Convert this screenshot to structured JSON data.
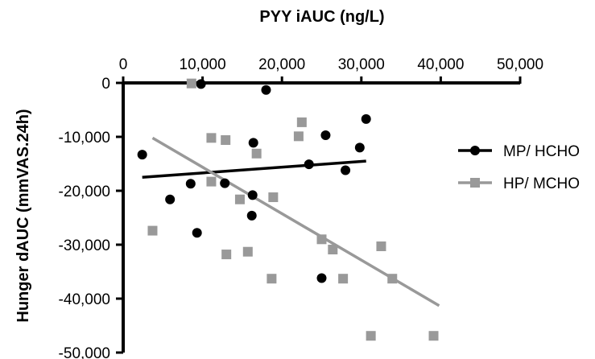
{
  "chart_data": {
    "type": "scatter",
    "xlabel": "PYY iAUC (ng/L)",
    "ylabel": "Hunger dAUC (mmVAS.24h)",
    "xlim": [
      0,
      50000
    ],
    "ylim": [
      -50000,
      0
    ],
    "x_ticks": [
      "0",
      "10,000",
      "20,000",
      "30,000",
      "40,000",
      "50,000"
    ],
    "y_ticks": [
      "0",
      "-10,000",
      "-20,000",
      "-30,000",
      "-40,000",
      "-50,000"
    ],
    "x_tick_values": [
      0,
      10000,
      20000,
      30000,
      40000,
      50000
    ],
    "y_tick_values": [
      0,
      -10000,
      -20000,
      -30000,
      -40000,
      -50000
    ],
    "x_axis_position": "top",
    "legend_position": "right",
    "grid": false,
    "series": [
      {
        "name": "MP/ HCHO",
        "color": "#000000",
        "marker": "circle",
        "points": [
          [
            2400,
            -13300
          ],
          [
            5900,
            -21600
          ],
          [
            8500,
            -18700
          ],
          [
            9300,
            -27800
          ],
          [
            9800,
            -200
          ],
          [
            12800,
            -18600
          ],
          [
            16200,
            -24600
          ],
          [
            16300,
            -20800
          ],
          [
            16400,
            -11100
          ],
          [
            18000,
            -1300
          ],
          [
            23400,
            -15100
          ],
          [
            25000,
            -36200
          ],
          [
            25500,
            -9700
          ],
          [
            28000,
            -16200
          ],
          [
            29800,
            -12000
          ],
          [
            30600,
            -6700
          ]
        ],
        "trendline": [
          [
            2400,
            -17500
          ],
          [
            30600,
            -14500
          ]
        ]
      },
      {
        "name": "HP/ MCHO",
        "color": "#999999",
        "marker": "square",
        "points": [
          [
            3700,
            -27400
          ],
          [
            8600,
            -100
          ],
          [
            11100,
            -10200
          ],
          [
            11100,
            -18300
          ],
          [
            12900,
            -10600
          ],
          [
            13000,
            -31800
          ],
          [
            14700,
            -21600
          ],
          [
            15700,
            -31300
          ],
          [
            16800,
            -13100
          ],
          [
            18700,
            -36300
          ],
          [
            18900,
            -21200
          ],
          [
            22100,
            -9900
          ],
          [
            22500,
            -7300
          ],
          [
            25000,
            -29000
          ],
          [
            26400,
            -30900
          ],
          [
            27700,
            -36300
          ],
          [
            31200,
            -46900
          ],
          [
            32500,
            -30300
          ],
          [
            33900,
            -36300
          ],
          [
            39100,
            -46900
          ]
        ],
        "trendline": [
          [
            3700,
            -10200
          ],
          [
            39800,
            -41300
          ]
        ]
      }
    ]
  }
}
